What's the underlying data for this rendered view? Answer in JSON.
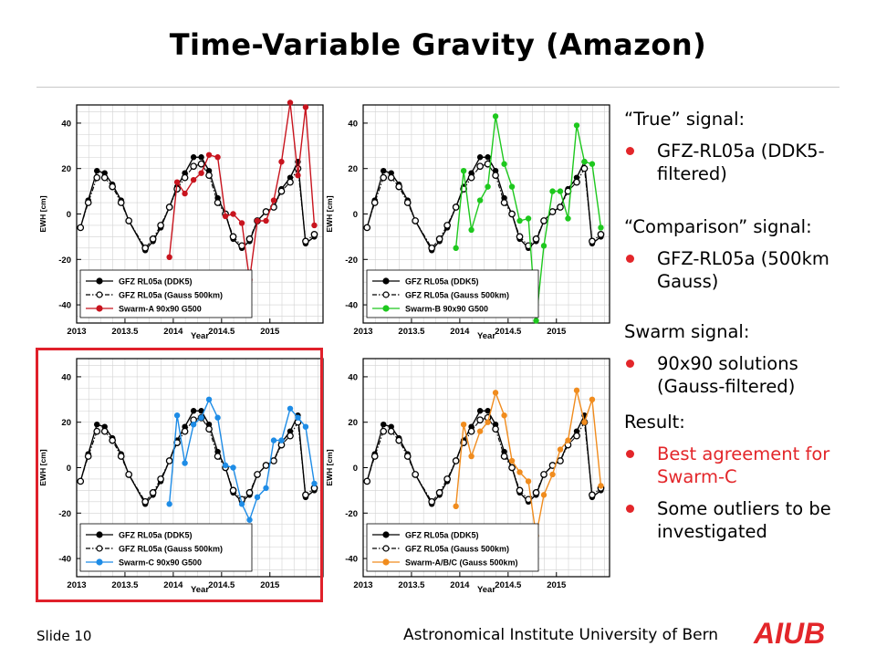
{
  "slide": {
    "title": "Time-Variable Gravity (Amazon)",
    "footer_slide": "Slide 10",
    "footer_institute": "Astronomical Institute University of Bern",
    "logo_text": "AIUB",
    "accent_color": "#e3262a"
  },
  "notes": {
    "true_heading": "“True” signal:",
    "true_item": "GFZ-RL05a (DDK5-filtered)",
    "comparison_heading": "“Comparison” signal:",
    "comparison_item": "GFZ-RL05a (500km Gauss)",
    "swarm_heading": "Swarm signal:",
    "swarm_item": "90x90 solutions (Gauss-filtered)",
    "result_heading": "Result:",
    "result_item_1": "Best agreement for Swarm-C",
    "result_item_2": "Some outliers to be investigated"
  },
  "chart_data": [
    {
      "type": "line",
      "xlabel": "Year",
      "ylabel": "EWH [cm]",
      "xlim": [
        2013,
        2015.55
      ],
      "ylim": [
        -48,
        48
      ],
      "xticks": [
        "2013",
        "2013.5",
        "2014",
        "2014.5",
        "2015"
      ],
      "yticks": [
        "-40",
        "-20",
        "0",
        "20",
        "40"
      ],
      "grid": true,
      "legend_position": "bottom-left",
      "series": [
        {
          "name": "GFZ RL05a (DDK5)",
          "color": "#000000",
          "style": "solid",
          "marker": "filled-circle",
          "x": [
            2013.04,
            2013.12,
            2013.21,
            2013.29,
            2013.37,
            2013.46,
            2013.54,
            2013.71,
            2013.79,
            2013.87,
            2013.96,
            2014.04,
            2014.12,
            2014.21,
            2014.29,
            2014.37,
            2014.46,
            2014.54,
            2014.62,
            2014.71,
            2014.79,
            2014.87,
            2014.96,
            2015.04,
            2015.12,
            2015.21,
            2015.29,
            2015.37,
            2015.46
          ],
          "y": [
            -6,
            6,
            19,
            18,
            13,
            6,
            -3,
            -16,
            -12,
            -6,
            3,
            12,
            18,
            25,
            25,
            19,
            7,
            0,
            -11,
            -15,
            -12,
            -3,
            1,
            3,
            11,
            16,
            23,
            -13,
            -10
          ]
        },
        {
          "name": "GFZ RL05a (Gauss 500km)",
          "color": "#000000",
          "style": "dash-dot",
          "marker": "open-circle",
          "x": [
            2013.04,
            2013.12,
            2013.21,
            2013.29,
            2013.37,
            2013.46,
            2013.54,
            2013.71,
            2013.79,
            2013.87,
            2013.96,
            2014.04,
            2014.12,
            2014.21,
            2014.29,
            2014.37,
            2014.46,
            2014.54,
            2014.62,
            2014.71,
            2014.79,
            2014.87,
            2014.96,
            2015.04,
            2015.12,
            2015.21,
            2015.29,
            2015.37,
            2015.46
          ],
          "y": [
            -6,
            5,
            16,
            16,
            12,
            5,
            -3,
            -15,
            -11,
            -5,
            3,
            11,
            16,
            21,
            22,
            17,
            5,
            0,
            -10,
            -14,
            -11,
            -3,
            1,
            3,
            10,
            14,
            20,
            -12,
            -9
          ]
        },
        {
          "name": "Swarm-A 90x90 G500",
          "color": "#c8141e",
          "style": "solid",
          "marker": "filled-circle",
          "x": [
            2013.96,
            2014.04,
            2014.12,
            2014.21,
            2014.29,
            2014.37,
            2014.46,
            2014.54,
            2014.62,
            2014.71,
            2014.79,
            2014.87,
            2014.96,
            2015.04,
            2015.12,
            2015.21,
            2015.29,
            2015.37,
            2015.46
          ],
          "y": [
            -19,
            14,
            9,
            15,
            18,
            26,
            25,
            -1,
            0,
            -4,
            -29,
            -3,
            -3,
            6,
            23,
            49,
            17,
            47,
            -5
          ]
        }
      ]
    },
    {
      "type": "line",
      "xlabel": "Year",
      "ylabel": "EWH [cm]",
      "xlim": [
        2013,
        2015.55
      ],
      "ylim": [
        -48,
        48
      ],
      "xticks": [
        "2013",
        "2013.5",
        "2014",
        "2014.5",
        "2015"
      ],
      "yticks": [
        "-40",
        "-20",
        "0",
        "20",
        "40"
      ],
      "grid": true,
      "legend_position": "bottom-left",
      "series": [
        {
          "name": "GFZ RL05a (DDK5)",
          "color": "#000000",
          "style": "solid",
          "marker": "filled-circle",
          "x": [
            2013.04,
            2013.12,
            2013.21,
            2013.29,
            2013.37,
            2013.46,
            2013.54,
            2013.71,
            2013.79,
            2013.87,
            2013.96,
            2014.04,
            2014.12,
            2014.21,
            2014.29,
            2014.37,
            2014.46,
            2014.54,
            2014.62,
            2014.71,
            2014.79,
            2014.87,
            2014.96,
            2015.04,
            2015.12,
            2015.21,
            2015.29,
            2015.37,
            2015.46
          ],
          "y": [
            -6,
            6,
            19,
            18,
            13,
            6,
            -3,
            -16,
            -12,
            -6,
            3,
            12,
            18,
            25,
            25,
            19,
            7,
            0,
            -11,
            -15,
            -12,
            -3,
            1,
            3,
            11,
            16,
            23,
            -13,
            -10
          ]
        },
        {
          "name": "GFZ RL05a (Gauss 500km)",
          "color": "#000000",
          "style": "dash-dot",
          "marker": "open-circle",
          "x": [
            2013.04,
            2013.12,
            2013.21,
            2013.29,
            2013.37,
            2013.46,
            2013.54,
            2013.71,
            2013.79,
            2013.87,
            2013.96,
            2014.04,
            2014.12,
            2014.21,
            2014.29,
            2014.37,
            2014.46,
            2014.54,
            2014.62,
            2014.71,
            2014.79,
            2014.87,
            2014.96,
            2015.04,
            2015.12,
            2015.21,
            2015.29,
            2015.37,
            2015.46
          ],
          "y": [
            -6,
            5,
            16,
            16,
            12,
            5,
            -3,
            -15,
            -11,
            -5,
            3,
            11,
            16,
            21,
            22,
            17,
            5,
            0,
            -10,
            -14,
            -11,
            -3,
            1,
            3,
            10,
            14,
            20,
            -12,
            -9
          ]
        },
        {
          "name": "Swarm-B 90x90 G500",
          "color": "#1ec81e",
          "style": "solid",
          "marker": "filled-circle",
          "x": [
            2013.96,
            2014.04,
            2014.12,
            2014.21,
            2014.29,
            2014.37,
            2014.46,
            2014.54,
            2014.62,
            2014.71,
            2014.79,
            2014.87,
            2014.96,
            2015.04,
            2015.12,
            2015.21,
            2015.29,
            2015.37,
            2015.46
          ],
          "y": [
            -15,
            19,
            -7,
            6,
            12,
            43,
            22,
            12,
            -3,
            -2,
            -47,
            -14,
            10,
            10,
            -2,
            39,
            23,
            22,
            -6
          ]
        }
      ]
    },
    {
      "type": "line",
      "xlabel": "Year",
      "ylabel": "EWH [cm]",
      "xlim": [
        2013,
        2015.55
      ],
      "ylim": [
        -48,
        48
      ],
      "xticks": [
        "2013",
        "2013.5",
        "2014",
        "2014.5",
        "2015"
      ],
      "yticks": [
        "-40",
        "-20",
        "0",
        "20",
        "40"
      ],
      "grid": true,
      "legend_position": "bottom-left",
      "series": [
        {
          "name": "GFZ RL05a (DDK5)",
          "color": "#000000",
          "style": "solid",
          "marker": "filled-circle",
          "x": [
            2013.04,
            2013.12,
            2013.21,
            2013.29,
            2013.37,
            2013.46,
            2013.54,
            2013.71,
            2013.79,
            2013.87,
            2013.96,
            2014.04,
            2014.12,
            2014.21,
            2014.29,
            2014.37,
            2014.46,
            2014.54,
            2014.62,
            2014.71,
            2014.79,
            2014.87,
            2014.96,
            2015.04,
            2015.12,
            2015.21,
            2015.29,
            2015.37,
            2015.46
          ],
          "y": [
            -6,
            6,
            19,
            18,
            13,
            6,
            -3,
            -16,
            -12,
            -6,
            3,
            12,
            18,
            25,
            25,
            19,
            7,
            0,
            -11,
            -15,
            -12,
            -3,
            1,
            3,
            11,
            16,
            23,
            -13,
            -10
          ]
        },
        {
          "name": "GFZ RL05a (Gauss 500km)",
          "color": "#000000",
          "style": "dash-dot",
          "marker": "open-circle",
          "x": [
            2013.04,
            2013.12,
            2013.21,
            2013.29,
            2013.37,
            2013.46,
            2013.54,
            2013.71,
            2013.79,
            2013.87,
            2013.96,
            2014.04,
            2014.12,
            2014.21,
            2014.29,
            2014.37,
            2014.46,
            2014.54,
            2014.62,
            2014.71,
            2014.79,
            2014.87,
            2014.96,
            2015.04,
            2015.12,
            2015.21,
            2015.29,
            2015.37,
            2015.46
          ],
          "y": [
            -6,
            5,
            16,
            16,
            12,
            5,
            -3,
            -15,
            -11,
            -5,
            3,
            11,
            16,
            21,
            22,
            17,
            5,
            0,
            -10,
            -14,
            -11,
            -3,
            1,
            3,
            10,
            14,
            20,
            -12,
            -9
          ]
        },
        {
          "name": "Swarm-C 90x90 G500",
          "color": "#1e8ce6",
          "style": "solid",
          "marker": "filled-circle",
          "x": [
            2013.96,
            2014.04,
            2014.12,
            2014.21,
            2014.29,
            2014.37,
            2014.46,
            2014.54,
            2014.62,
            2014.71,
            2014.79,
            2014.87,
            2014.96,
            2015.04,
            2015.12,
            2015.21,
            2015.29,
            2015.37,
            2015.46
          ],
          "y": [
            -16,
            23,
            2,
            19,
            22,
            30,
            22,
            1,
            0,
            -16,
            -23,
            -13,
            -9,
            12,
            12,
            26,
            22,
            18,
            -7
          ]
        }
      ]
    },
    {
      "type": "line",
      "xlabel": "Year",
      "ylabel": "EWH [cm]",
      "xlim": [
        2013,
        2015.55
      ],
      "ylim": [
        -48,
        48
      ],
      "xticks": [
        "2013",
        "2013.5",
        "2014",
        "2014.5",
        "2015"
      ],
      "yticks": [
        "-40",
        "-20",
        "0",
        "20",
        "40"
      ],
      "grid": true,
      "legend_position": "bottom-left",
      "series": [
        {
          "name": "GFZ RL05a (DDK5)",
          "color": "#000000",
          "style": "solid",
          "marker": "filled-circle",
          "x": [
            2013.04,
            2013.12,
            2013.21,
            2013.29,
            2013.37,
            2013.46,
            2013.54,
            2013.71,
            2013.79,
            2013.87,
            2013.96,
            2014.04,
            2014.12,
            2014.21,
            2014.29,
            2014.37,
            2014.46,
            2014.54,
            2014.62,
            2014.71,
            2014.79,
            2014.87,
            2014.96,
            2015.04,
            2015.12,
            2015.21,
            2015.29,
            2015.37,
            2015.46
          ],
          "y": [
            -6,
            6,
            19,
            18,
            13,
            6,
            -3,
            -16,
            -12,
            -6,
            3,
            12,
            18,
            25,
            25,
            19,
            7,
            0,
            -11,
            -15,
            -12,
            -3,
            1,
            3,
            11,
            16,
            23,
            -13,
            -10
          ]
        },
        {
          "name": "GFZ RL05a (Gauss 500km)",
          "color": "#000000",
          "style": "dash-dot",
          "marker": "open-circle",
          "x": [
            2013.04,
            2013.12,
            2013.21,
            2013.29,
            2013.37,
            2013.46,
            2013.54,
            2013.71,
            2013.79,
            2013.87,
            2013.96,
            2014.04,
            2014.12,
            2014.21,
            2014.29,
            2014.37,
            2014.46,
            2014.54,
            2014.62,
            2014.71,
            2014.79,
            2014.87,
            2014.96,
            2015.04,
            2015.12,
            2015.21,
            2015.29,
            2015.37,
            2015.46
          ],
          "y": [
            -6,
            5,
            16,
            16,
            12,
            5,
            -3,
            -15,
            -11,
            -5,
            3,
            11,
            16,
            21,
            22,
            17,
            5,
            0,
            -10,
            -14,
            -11,
            -3,
            1,
            3,
            10,
            14,
            20,
            -12,
            -9
          ]
        },
        {
          "name": "Swarm-A/B/C (Gauss 500km)",
          "color": "#f08c1e",
          "style": "solid",
          "marker": "filled-circle",
          "x": [
            2013.96,
            2014.04,
            2014.12,
            2014.21,
            2014.29,
            2014.37,
            2014.46,
            2014.54,
            2014.62,
            2014.71,
            2014.79,
            2014.87,
            2014.96,
            2015.04,
            2015.12,
            2015.21,
            2015.29,
            2015.37,
            2015.46
          ],
          "y": [
            -17,
            19,
            5,
            16,
            20,
            33,
            23,
            3,
            -2,
            -6,
            -30,
            -12,
            -3,
            8,
            12,
            34,
            20,
            30,
            -8
          ]
        }
      ]
    }
  ]
}
